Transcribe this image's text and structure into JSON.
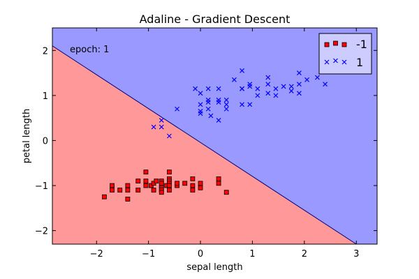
{
  "chart_data": {
    "type": "scatter",
    "title": "Adaline - Gradient Descent",
    "xlabel": "sepal length",
    "ylabel": "petal length",
    "annotation": "epoch: 1",
    "xlim": [
      -2.85,
      3.4
    ],
    "ylim": [
      -2.3,
      2.5
    ],
    "xticks": [
      -2,
      -1,
      0,
      1,
      2,
      3
    ],
    "yticks": [
      -2,
      -1,
      0,
      1,
      2
    ],
    "xtick_labels": [
      "−2",
      "−1",
      "0",
      "1",
      "2",
      "3"
    ],
    "ytick_labels": [
      "−2",
      "−1",
      "0",
      "1",
      "2"
    ],
    "grid": false,
    "legend_position": "top-right",
    "decision_boundary": {
      "points": [
        [
          -2.85,
          2.1
        ],
        [
          3.0,
          -2.3
        ]
      ]
    },
    "regions": [
      {
        "label": "-1",
        "color": "#ff9999"
      },
      {
        "label": "1",
        "color": "#9999ff"
      }
    ],
    "series": [
      {
        "name": "-1",
        "marker": "square",
        "color": "#ff0000",
        "points": [
          [
            -1.85,
            -1.25
          ],
          [
            -1.7,
            -1.1
          ],
          [
            -1.7,
            -1.0
          ],
          [
            -1.55,
            -1.1
          ],
          [
            -1.4,
            -1.0
          ],
          [
            -1.4,
            -1.1
          ],
          [
            -1.4,
            -1.3
          ],
          [
            -1.2,
            -1.1
          ],
          [
            -1.2,
            -0.9
          ],
          [
            -1.05,
            -0.7
          ],
          [
            -1.05,
            -0.9
          ],
          [
            -1.05,
            -1.0
          ],
          [
            -0.95,
            -1.0
          ],
          [
            -0.9,
            -1.1
          ],
          [
            -0.9,
            -0.95
          ],
          [
            -0.85,
            -0.9
          ],
          [
            -0.75,
            -1.0
          ],
          [
            -0.75,
            -1.05
          ],
          [
            -0.75,
            -1.1
          ],
          [
            -0.75,
            -1.15
          ],
          [
            -0.75,
            -0.9
          ],
          [
            -0.75,
            -0.95
          ],
          [
            -0.65,
            -1.0
          ],
          [
            -0.6,
            -0.7
          ],
          [
            -0.6,
            -0.85
          ],
          [
            -0.6,
            -0.9
          ],
          [
            -0.6,
            -0.95
          ],
          [
            -0.6,
            -1.0
          ],
          [
            -0.6,
            -1.1
          ],
          [
            -0.45,
            -1.0
          ],
          [
            -0.45,
            -0.95
          ],
          [
            -0.3,
            -0.95
          ],
          [
            -0.15,
            -0.85
          ],
          [
            -0.15,
            -1.0
          ],
          [
            -0.15,
            -1.1
          ],
          [
            0.0,
            -0.95
          ],
          [
            0.0,
            -1.05
          ],
          [
            0.35,
            -0.85
          ],
          [
            0.35,
            -0.95
          ],
          [
            0.5,
            -1.15
          ]
        ]
      },
      {
        "name": "1",
        "marker": "x",
        "color": "#0000ff",
        "points": [
          [
            -0.9,
            0.3
          ],
          [
            -0.75,
            0.3
          ],
          [
            -0.75,
            0.45
          ],
          [
            -0.6,
            0.1
          ],
          [
            -0.45,
            0.7
          ],
          [
            -0.1,
            1.15
          ],
          [
            0.0,
            0.6
          ],
          [
            0.0,
            0.65
          ],
          [
            0.0,
            0.8
          ],
          [
            0.0,
            1.05
          ],
          [
            0.15,
            0.7
          ],
          [
            0.15,
            0.85
          ],
          [
            0.15,
            0.9
          ],
          [
            0.15,
            1.15
          ],
          [
            0.2,
            0.55
          ],
          [
            0.35,
            0.45
          ],
          [
            0.35,
            0.85
          ],
          [
            0.35,
            0.9
          ],
          [
            0.35,
            1.15
          ],
          [
            0.5,
            0.7
          ],
          [
            0.5,
            0.8
          ],
          [
            0.5,
            0.9
          ],
          [
            0.65,
            1.35
          ],
          [
            0.8,
            0.8
          ],
          [
            0.8,
            1.15
          ],
          [
            0.8,
            1.15
          ],
          [
            0.8,
            1.55
          ],
          [
            0.95,
            0.8
          ],
          [
            0.95,
            1.25
          ],
          [
            0.95,
            1.2
          ],
          [
            1.1,
            1.0
          ],
          [
            1.1,
            1.15
          ],
          [
            1.3,
            1.05
          ],
          [
            1.3,
            1.25
          ],
          [
            1.3,
            1.4
          ],
          [
            1.45,
            1.0
          ],
          [
            1.45,
            1.15
          ],
          [
            1.6,
            1.2
          ],
          [
            1.75,
            1.1
          ],
          [
            1.75,
            1.2
          ],
          [
            1.9,
            1.05
          ],
          [
            1.9,
            1.25
          ],
          [
            1.9,
            1.5
          ],
          [
            2.05,
            1.35
          ],
          [
            2.25,
            1.4
          ],
          [
            2.4,
            1.25
          ]
        ]
      }
    ]
  }
}
